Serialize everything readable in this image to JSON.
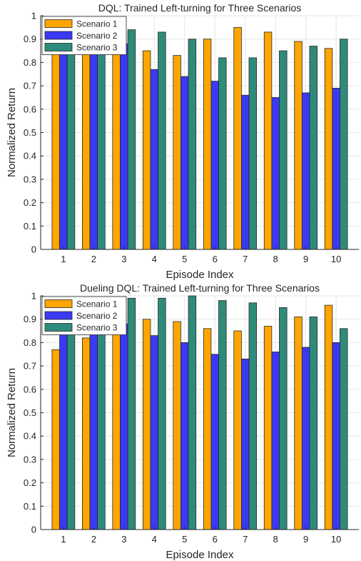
{
  "chart_data": [
    {
      "type": "bar",
      "title": "DQL: Trained Left-turning for Three Scenarios",
      "xlabel": "Episode Index",
      "ylabel": "Normalized Return",
      "ylim": [
        0,
        1
      ],
      "yticks": [
        0,
        0.1,
        0.2,
        0.3,
        0.4,
        0.5,
        0.6,
        0.7,
        0.8,
        0.9,
        1
      ],
      "grid": true,
      "legend_position": "top-left",
      "categories": [
        "1",
        "2",
        "3",
        "4",
        "5",
        "6",
        "7",
        "8",
        "9",
        "10"
      ],
      "series": [
        {
          "name": "Scenario 1",
          "color": "#FFA500",
          "values": [
            0.91,
            0.88,
            0.87,
            0.85,
            0.83,
            0.9,
            0.95,
            0.93,
            0.89,
            0.86
          ]
        },
        {
          "name": "Scenario 2",
          "color": "#3A3AF4",
          "values": [
            0.93,
            0.9,
            0.88,
            0.77,
            0.74,
            0.72,
            0.66,
            0.65,
            0.67,
            0.69
          ]
        },
        {
          "name": "Scenario 3",
          "color": "#2E8B7A",
          "values": [
            0.93,
            0.93,
            0.94,
            0.93,
            0.9,
            0.82,
            0.82,
            0.85,
            0.87,
            0.9
          ]
        }
      ]
    },
    {
      "type": "bar",
      "title": "Dueling DQL: Trained Left-turning for Three Scenarios",
      "xlabel": "Episode Index",
      "ylabel": "Normalized Return",
      "ylim": [
        0,
        1
      ],
      "yticks": [
        0,
        0.1,
        0.2,
        0.3,
        0.4,
        0.5,
        0.6,
        0.7,
        0.8,
        0.9,
        1
      ],
      "grid": true,
      "legend_position": "top-left",
      "categories": [
        "1",
        "2",
        "3",
        "4",
        "5",
        "6",
        "7",
        "8",
        "9",
        "10"
      ],
      "series": [
        {
          "name": "Scenario 1",
          "color": "#FFA500",
          "values": [
            0.77,
            0.82,
            0.86,
            0.9,
            0.89,
            0.86,
            0.85,
            0.87,
            0.91,
            0.96
          ]
        },
        {
          "name": "Scenario 2",
          "color": "#3A3AF4",
          "values": [
            0.88,
            0.87,
            0.88,
            0.83,
            0.8,
            0.75,
            0.73,
            0.76,
            0.78,
            0.8
          ]
        },
        {
          "name": "Scenario 3",
          "color": "#2E8B7A",
          "values": [
            0.92,
            0.93,
            0.99,
            0.99,
            1.0,
            0.98,
            0.97,
            0.95,
            0.91,
            0.86
          ]
        }
      ]
    }
  ]
}
